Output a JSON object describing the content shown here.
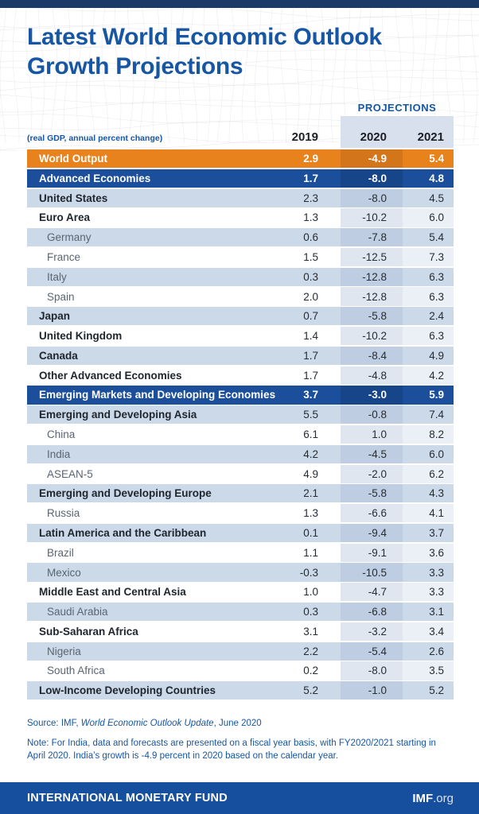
{
  "header": {
    "title_line1": "Latest World Economic Outlook",
    "title_line2": "Growth Projections",
    "subtitle": "(real GDP, annual percent change)",
    "projections_label": "PROJECTIONS",
    "columns": [
      "2019",
      "2020",
      "2021"
    ]
  },
  "table": {
    "rows": [
      {
        "label": "World Output",
        "style": "world",
        "band": "",
        "values": [
          "2.9",
          "-4.9",
          "5.4"
        ]
      },
      {
        "label": "Advanced Economies",
        "style": "header",
        "band": "",
        "values": [
          "1.7",
          "-8.0",
          "4.8"
        ]
      },
      {
        "label": "United States",
        "style": "main",
        "band": "light",
        "values": [
          "2.3",
          "-8.0",
          "4.5"
        ]
      },
      {
        "label": "Euro Area",
        "style": "main",
        "band": "white",
        "values": [
          "1.3",
          "-10.2",
          "6.0"
        ]
      },
      {
        "label": "Germany",
        "style": "sub",
        "band": "light",
        "values": [
          "0.6",
          "-7.8",
          "5.4"
        ]
      },
      {
        "label": "France",
        "style": "sub",
        "band": "white",
        "values": [
          "1.5",
          "-12.5",
          "7.3"
        ]
      },
      {
        "label": "Italy",
        "style": "sub",
        "band": "light",
        "values": [
          "0.3",
          "-12.8",
          "6.3"
        ]
      },
      {
        "label": "Spain",
        "style": "sub",
        "band": "white",
        "values": [
          "2.0",
          "-12.8",
          "6.3"
        ]
      },
      {
        "label": "Japan",
        "style": "main",
        "band": "light",
        "values": [
          "0.7",
          "-5.8",
          "2.4"
        ]
      },
      {
        "label": "United Kingdom",
        "style": "main",
        "band": "white",
        "values": [
          "1.4",
          "-10.2",
          "6.3"
        ]
      },
      {
        "label": "Canada",
        "style": "main",
        "band": "light",
        "values": [
          "1.7",
          "-8.4",
          "4.9"
        ]
      },
      {
        "label": "Other Advanced Economies",
        "style": "main",
        "band": "white",
        "values": [
          "1.7",
          "-4.8",
          "4.2"
        ]
      },
      {
        "label": "Emerging Markets and Developing Economies",
        "style": "header",
        "band": "",
        "values": [
          "3.7",
          "-3.0",
          "5.9"
        ]
      },
      {
        "label": "Emerging and Developing Asia",
        "style": "main",
        "band": "light",
        "values": [
          "5.5",
          "-0.8",
          "7.4"
        ]
      },
      {
        "label": "China",
        "style": "sub",
        "band": "white",
        "values": [
          "6.1",
          "1.0",
          "8.2"
        ]
      },
      {
        "label": "India",
        "style": "sub",
        "band": "light",
        "values": [
          "4.2",
          "-4.5",
          "6.0"
        ]
      },
      {
        "label": "ASEAN-5",
        "style": "sub",
        "band": "white",
        "values": [
          "4.9",
          "-2.0",
          "6.2"
        ]
      },
      {
        "label": "Emerging and Developing Europe",
        "style": "main",
        "band": "light",
        "values": [
          "2.1",
          "-5.8",
          "4.3"
        ]
      },
      {
        "label": "Russia",
        "style": "sub",
        "band": "white",
        "values": [
          "1.3",
          "-6.6",
          "4.1"
        ]
      },
      {
        "label": "Latin America and the Caribbean",
        "style": "main",
        "band": "light",
        "values": [
          "0.1",
          "-9.4",
          "3.7"
        ]
      },
      {
        "label": "Brazil",
        "style": "sub",
        "band": "white",
        "values": [
          "1.1",
          "-9.1",
          "3.6"
        ]
      },
      {
        "label": "Mexico",
        "style": "sub",
        "band": "light",
        "values": [
          "-0.3",
          "-10.5",
          "3.3"
        ]
      },
      {
        "label": "Middle East and Central Asia",
        "style": "main",
        "band": "white",
        "values": [
          "1.0",
          "-4.7",
          "3.3"
        ]
      },
      {
        "label": "Saudi Arabia",
        "style": "sub",
        "band": "light",
        "values": [
          "0.3",
          "-6.8",
          "3.1"
        ]
      },
      {
        "label": "Sub-Saharan Africa",
        "style": "main",
        "band": "white",
        "values": [
          "3.1",
          "-3.2",
          "3.4"
        ]
      },
      {
        "label": "Nigeria",
        "style": "sub",
        "band": "light",
        "values": [
          "2.2",
          "-5.4",
          "2.6"
        ]
      },
      {
        "label": "South Africa",
        "style": "sub",
        "band": "white",
        "values": [
          "0.2",
          "-8.0",
          "3.5"
        ]
      },
      {
        "label": "Low-Income Developing Countries",
        "style": "main",
        "band": "light",
        "values": [
          "5.2",
          "-1.0",
          "5.2"
        ]
      }
    ]
  },
  "chart_data": {
    "type": "table",
    "title": "Latest World Economic Outlook Growth Projections",
    "subtitle": "(real GDP, annual percent change)",
    "categories": [
      "World Output",
      "Advanced Economies",
      "United States",
      "Euro Area",
      "Germany",
      "France",
      "Italy",
      "Spain",
      "Japan",
      "United Kingdom",
      "Canada",
      "Other Advanced Economies",
      "Emerging Markets and Developing Economies",
      "Emerging and Developing Asia",
      "China",
      "India",
      "ASEAN-5",
      "Emerging and Developing Europe",
      "Russia",
      "Latin America and the Caribbean",
      "Brazil",
      "Mexico",
      "Middle East and Central Asia",
      "Saudi Arabia",
      "Sub-Saharan Africa",
      "Nigeria",
      "South Africa",
      "Low-Income Developing Countries"
    ],
    "series": [
      {
        "name": "2019",
        "values": [
          2.9,
          1.7,
          2.3,
          1.3,
          0.6,
          1.5,
          0.3,
          2.0,
          0.7,
          1.4,
          1.7,
          1.7,
          3.7,
          5.5,
          6.1,
          4.2,
          4.9,
          2.1,
          1.3,
          0.1,
          1.1,
          -0.3,
          1.0,
          0.3,
          3.1,
          2.2,
          0.2,
          5.2
        ]
      },
      {
        "name": "2020",
        "values": [
          -4.9,
          -8.0,
          -8.0,
          -10.2,
          -7.8,
          -12.5,
          -12.8,
          -12.8,
          -5.8,
          -10.2,
          -8.4,
          -4.8,
          -3.0,
          -0.8,
          1.0,
          -4.5,
          -2.0,
          -5.8,
          -6.6,
          -9.4,
          -9.1,
          -10.5,
          -4.7,
          -6.8,
          -3.2,
          -5.4,
          -8.0,
          -1.0
        ]
      },
      {
        "name": "2021",
        "values": [
          5.4,
          4.8,
          4.5,
          6.0,
          5.4,
          7.3,
          6.3,
          6.3,
          2.4,
          6.3,
          4.9,
          4.2,
          5.9,
          7.4,
          8.2,
          6.0,
          6.2,
          4.3,
          4.1,
          3.7,
          3.6,
          3.3,
          3.3,
          3.1,
          3.4,
          2.6,
          3.5,
          5.2
        ]
      }
    ],
    "projection_columns": [
      "2020",
      "2021"
    ]
  },
  "footnotes": {
    "source_prefix": "Source: IMF, ",
    "source_italic": "World Economic Outlook Update",
    "source_suffix": ", June 2020",
    "note": "Note: For India, data and forecasts are presented on a fiscal year basis, with FY2020/2021 starting in April 2020. India’s growth is -4.9 percent in 2020 based on the calendar year."
  },
  "footer": {
    "org_name": "INTERNATIONAL MONETARY FUND",
    "site_bold": "IMF",
    "site_rest": ".org"
  },
  "colors": {
    "brand-blue": "#1656A3",
    "navy-bar": "#1C3A68",
    "footer-blue": "#164F9E",
    "header-row-blue": "#1B4F9C",
    "header-row-blue-dark": "#174589",
    "orange": "#E8821D",
    "orange-dark": "#D3751B",
    "band-light": "#CBD9E9",
    "band-light-2020": "#BECDE2",
    "white-2020": "#DFE6F0",
    "white-2021": "#EBF0F6",
    "projections-box": "#D8E0EE",
    "sub-label": "#5B6570",
    "label-dark": "#20262E",
    "number": "#262C33"
  }
}
